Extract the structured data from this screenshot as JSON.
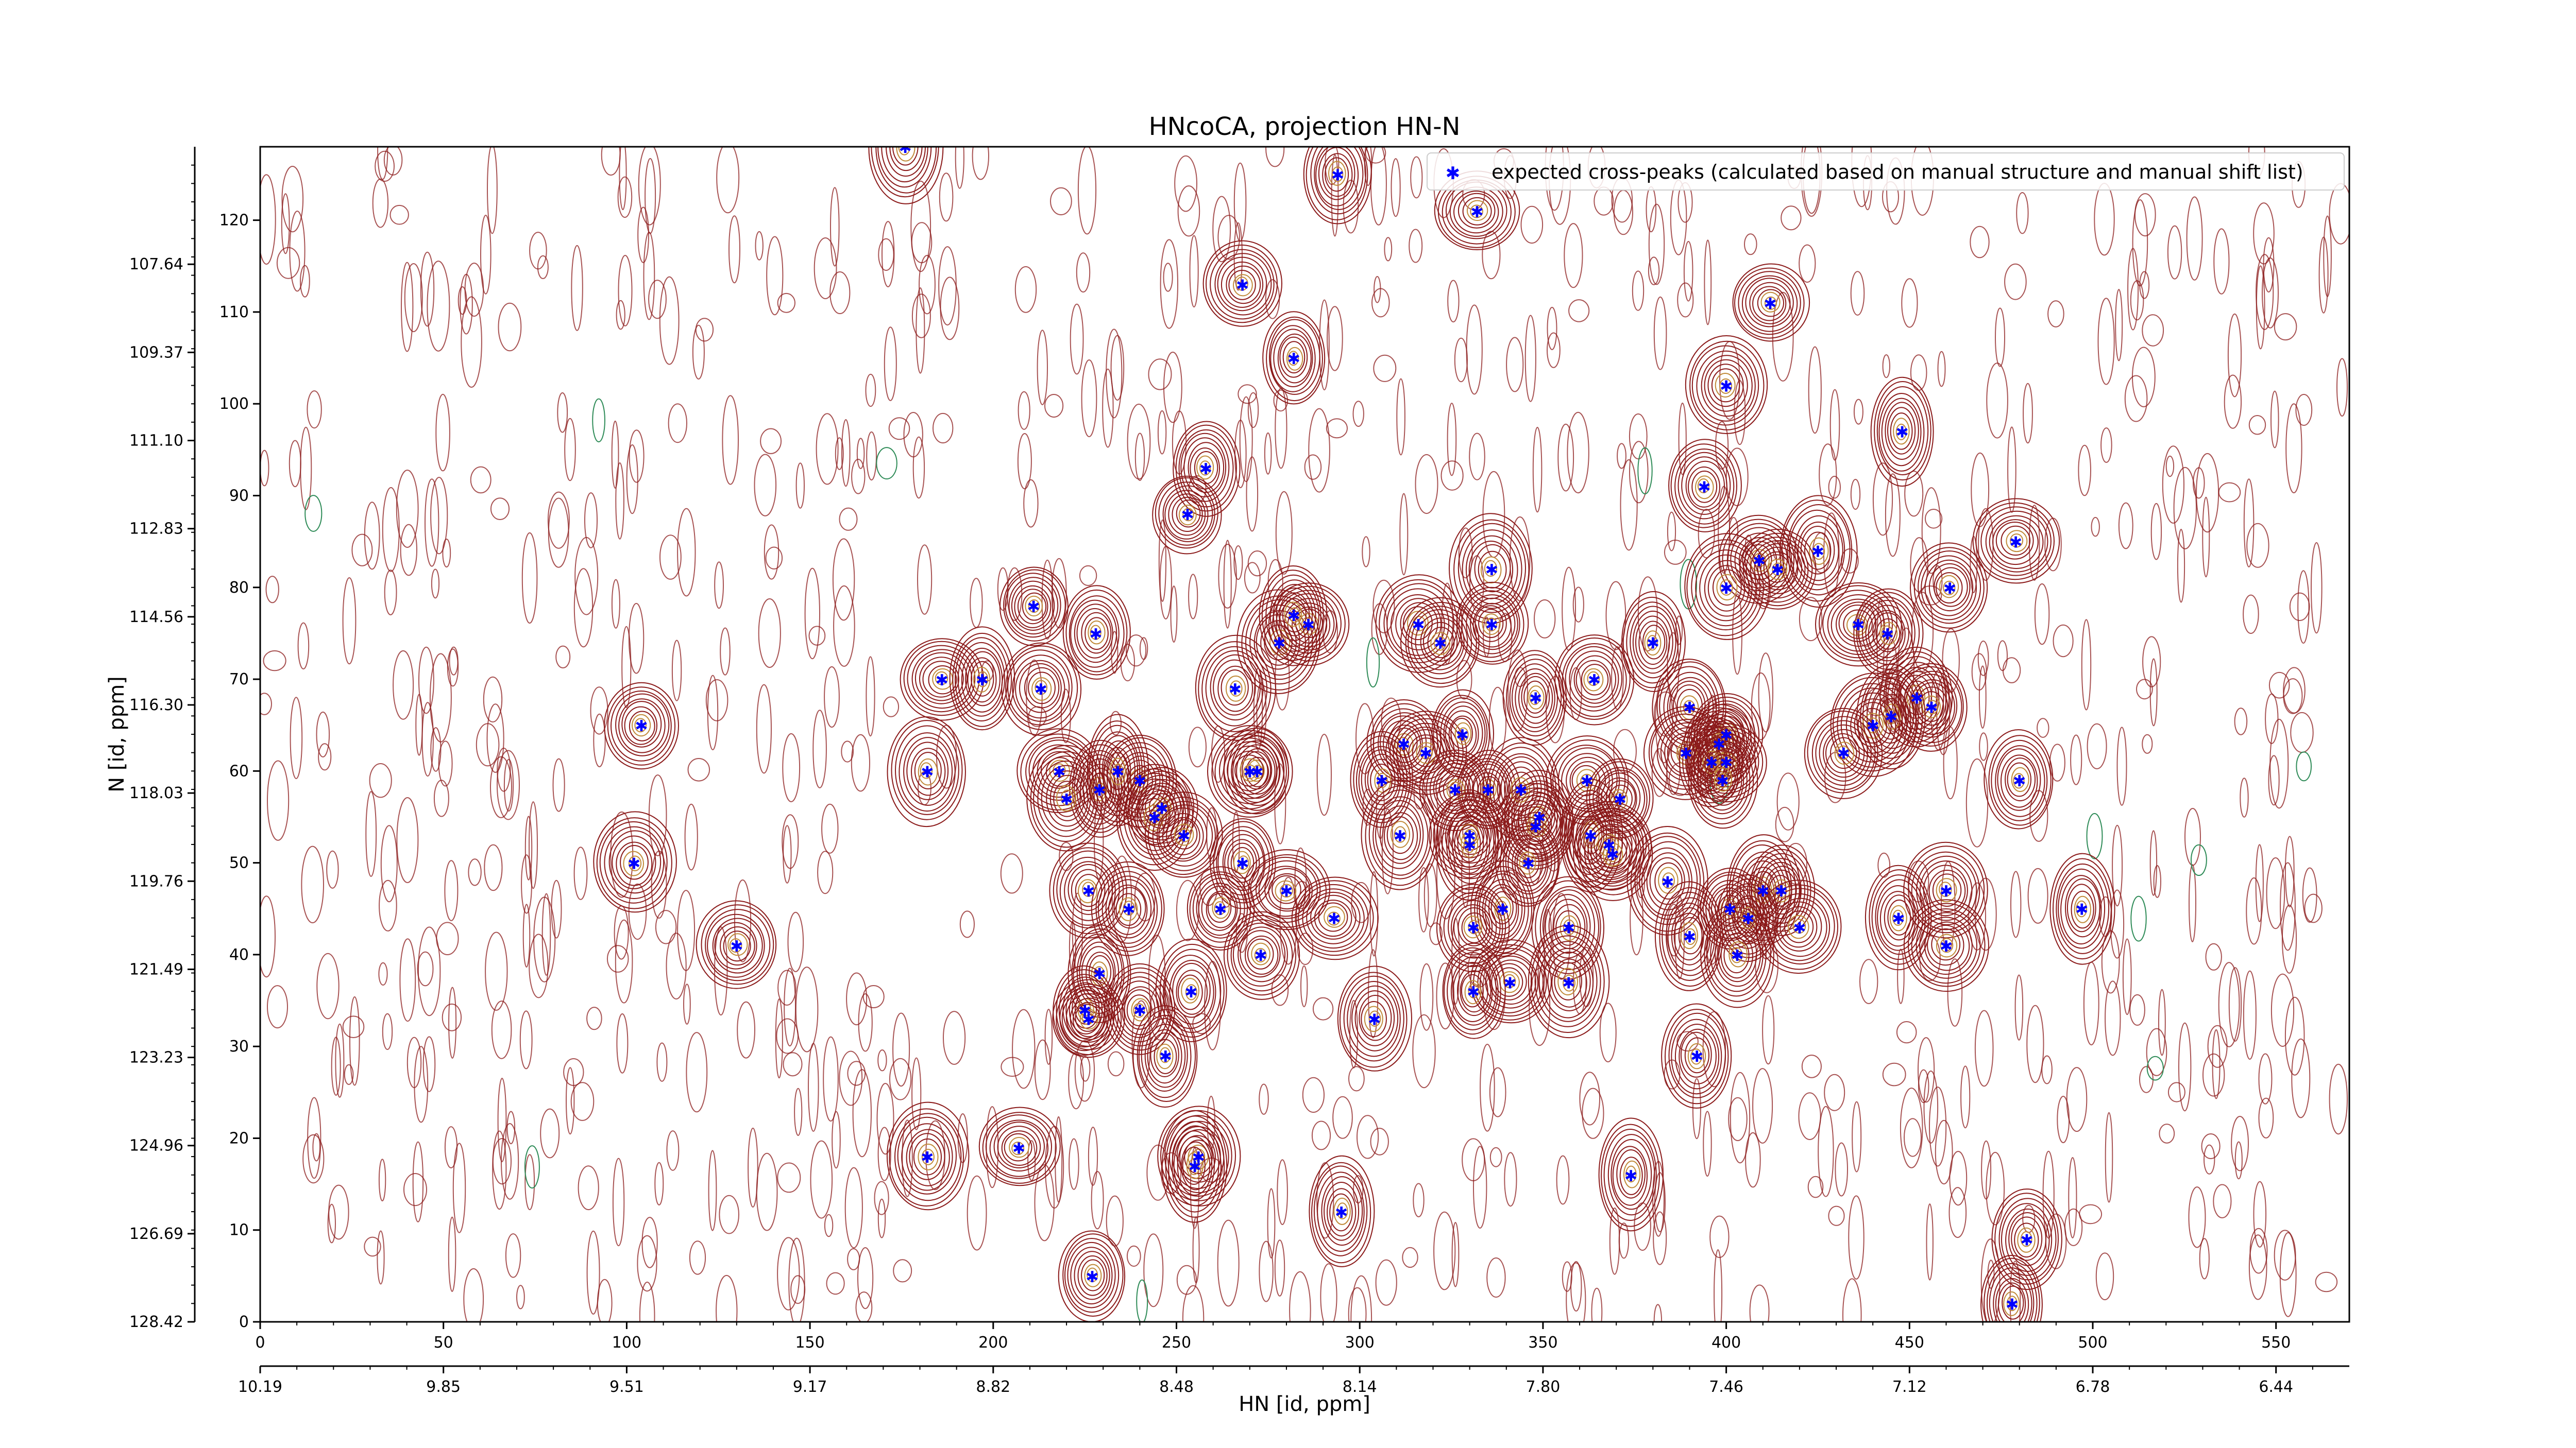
{
  "chart_data": {
    "type": "scatter",
    "title": "HNcoCA, projection HN-N",
    "xlabel": "HN [id, ppm]",
    "ylabel": "N [id, ppm]",
    "x_index_range": [
      0,
      570
    ],
    "y_index_range": [
      0,
      128
    ],
    "x_index_ticks": [
      0,
      50,
      100,
      150,
      200,
      250,
      300,
      350,
      400,
      450,
      500,
      550
    ],
    "y_index_ticks": [
      0,
      10,
      20,
      30,
      40,
      50,
      60,
      70,
      80,
      90,
      100,
      110,
      120
    ],
    "x_ppm_ticks": [
      {
        "at": 0,
        "label": "10.19"
      },
      {
        "at": 50,
        "label": "9.85"
      },
      {
        "at": 100,
        "label": "9.51"
      },
      {
        "at": 150,
        "label": "9.17"
      },
      {
        "at": 200,
        "label": "8.82"
      },
      {
        "at": 250,
        "label": "8.48"
      },
      {
        "at": 300,
        "label": "8.14"
      },
      {
        "at": 350,
        "label": "7.80"
      },
      {
        "at": 400,
        "label": "7.46"
      },
      {
        "at": 450,
        "label": "7.12"
      },
      {
        "at": 500,
        "label": "6.78"
      },
      {
        "at": 550,
        "label": "6.44"
      }
    ],
    "y_ppm_ticks": [
      {
        "at": 0,
        "label": "128.42"
      },
      {
        "at": 9.6,
        "label": "126.69"
      },
      {
        "at": 19.2,
        "label": "124.96"
      },
      {
        "at": 28.8,
        "label": "123.23"
      },
      {
        "at": 38.4,
        "label": "121.49"
      },
      {
        "at": 48.0,
        "label": "119.76"
      },
      {
        "at": 57.6,
        "label": "118.03"
      },
      {
        "at": 67.2,
        "label": "116.30"
      },
      {
        "at": 76.8,
        "label": "114.56"
      },
      {
        "at": 86.4,
        "label": "112.83"
      },
      {
        "at": 96.0,
        "label": "111.10"
      },
      {
        "at": 105.6,
        "label": "109.37"
      },
      {
        "at": 115.2,
        "label": "107.64"
      }
    ],
    "legend": {
      "location": "top-right",
      "label": "expected cross-peaks (calculated based on manual structure and manual shift list)"
    },
    "colors": {
      "contour": "#8b1a1a",
      "contour_inner": "#c08a3a",
      "negative_contour": "#2e8b57",
      "peak": "#0000ff"
    },
    "series": [
      {
        "name": "expected cross-peaks (calculated based on manual structure and manual shift list)",
        "points": [
          [
            176,
            128
          ],
          [
            294,
            125
          ],
          [
            332,
            121
          ],
          [
            282,
            105
          ],
          [
            268,
            113
          ],
          [
            412,
            111
          ],
          [
            400,
            102
          ],
          [
            448,
            97
          ],
          [
            394,
            91
          ],
          [
            258,
            93
          ],
          [
            253,
            88
          ],
          [
            479,
            85
          ],
          [
            425,
            84
          ],
          [
            409,
            83
          ],
          [
            414,
            82
          ],
          [
            400,
            80
          ],
          [
            461,
            80
          ],
          [
            211,
            78
          ],
          [
            336,
            82
          ],
          [
            316,
            76
          ],
          [
            336,
            76
          ],
          [
            322,
            74
          ],
          [
            278,
            74
          ],
          [
            286,
            76
          ],
          [
            282,
            77
          ],
          [
            228,
            75
          ],
          [
            436,
            76
          ],
          [
            444,
            75
          ],
          [
            380,
            74
          ],
          [
            186,
            70
          ],
          [
            197,
            70
          ],
          [
            213,
            69
          ],
          [
            266,
            69
          ],
          [
            348,
            68
          ],
          [
            364,
            70
          ],
          [
            390,
            67
          ],
          [
            452,
            68
          ],
          [
            456,
            67
          ],
          [
            445,
            66
          ],
          [
            440,
            65
          ],
          [
            400,
            64
          ],
          [
            104,
            65
          ],
          [
            312,
            63
          ],
          [
            318,
            62
          ],
          [
            328,
            64
          ],
          [
            389,
            62
          ],
          [
            398,
            63
          ],
          [
            432,
            62
          ],
          [
            400,
            61
          ],
          [
            396,
            61
          ],
          [
            182,
            60
          ],
          [
            218,
            60
          ],
          [
            399,
            59
          ],
          [
            480,
            59
          ],
          [
            240,
            59
          ],
          [
            362,
            59
          ],
          [
            335,
            58
          ],
          [
            306,
            59
          ],
          [
            326,
            58
          ],
          [
            349,
            55
          ],
          [
            344,
            58
          ],
          [
            229,
            58
          ],
          [
            371,
            57
          ],
          [
            363,
            53
          ],
          [
            220,
            57
          ],
          [
            246,
            56
          ],
          [
            244,
            55
          ],
          [
            272,
            60
          ],
          [
            270,
            60
          ],
          [
            234,
            60
          ],
          [
            311,
            53
          ],
          [
            252,
            53
          ],
          [
            330,
            53
          ],
          [
            348,
            54
          ],
          [
            330,
            52
          ],
          [
            368,
            52
          ],
          [
            369,
            51
          ],
          [
            384,
            48
          ],
          [
            102,
            50
          ],
          [
            346,
            50
          ],
          [
            268,
            50
          ],
          [
            280,
            47
          ],
          [
            226,
            47
          ],
          [
            237,
            45
          ],
          [
            262,
            45
          ],
          [
            339,
            45
          ],
          [
            293,
            44
          ],
          [
            401,
            45
          ],
          [
            410,
            47
          ],
          [
            415,
            47
          ],
          [
            406,
            44
          ],
          [
            420,
            43
          ],
          [
            447,
            44
          ],
          [
            497,
            45
          ],
          [
            331,
            43
          ],
          [
            357,
            43
          ],
          [
            460,
            47
          ],
          [
            390,
            42
          ],
          [
            460,
            41
          ],
          [
            273,
            40
          ],
          [
            403,
            40
          ],
          [
            130,
            41
          ],
          [
            341,
            37
          ],
          [
            229,
            38
          ],
          [
            254,
            36
          ],
          [
            357,
            37
          ],
          [
            331,
            36
          ],
          [
            225,
            34
          ],
          [
            240,
            34
          ],
          [
            226,
            33
          ],
          [
            304,
            33
          ],
          [
            247,
            29
          ],
          [
            392,
            29
          ],
          [
            182,
            18
          ],
          [
            207,
            19
          ],
          [
            256,
            18
          ],
          [
            255,
            17
          ],
          [
            374,
            16
          ],
          [
            295,
            12
          ],
          [
            227,
            5
          ],
          [
            478,
            2
          ],
          [
            482,
            9
          ]
        ]
      }
    ]
  }
}
